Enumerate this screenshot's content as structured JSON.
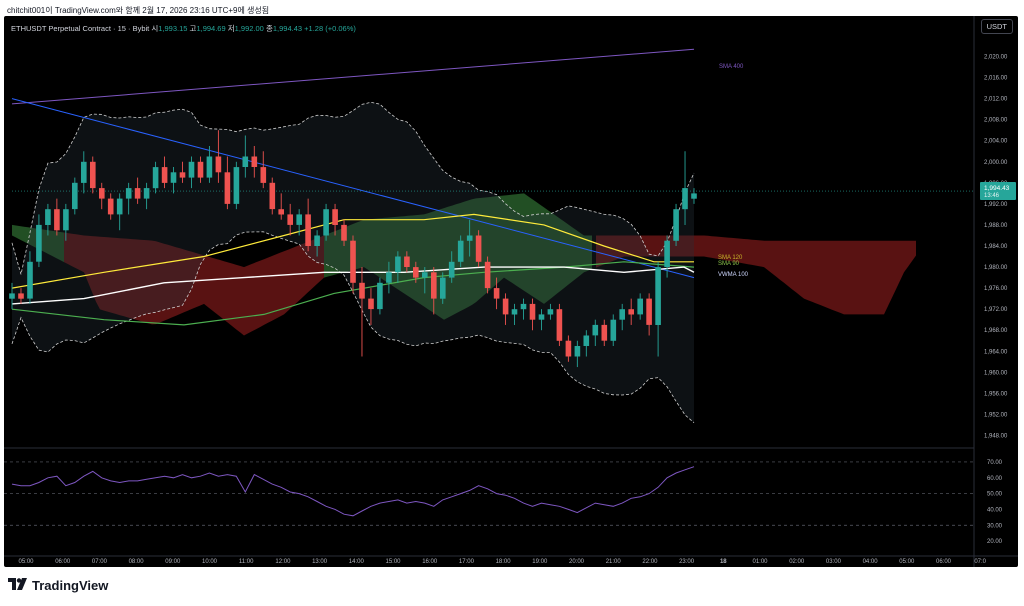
{
  "caption": "chitchit001이 TradingView.com와 함께 2월 17, 2026 23:16 UTC+9에 생성됨",
  "header": {
    "symbol": "ETHUSDT Perpetual Contract · 15 · Bybit",
    "open_label": "시",
    "open": "1,993.15",
    "high_label": "고",
    "high": "1,994.69",
    "low_label": "저",
    "low": "1,992.00",
    "close_label": "종",
    "close": "1,994.43",
    "change": "+1.28 (+0.06%)"
  },
  "currency_button": "USDT",
  "price_tag": {
    "price": "1,994.43",
    "countdown": "13:46"
  },
  "indicator_labels": {
    "sma400": "SMA 400",
    "sma120": "SMA 120",
    "sma90": "SMA 90",
    "vwma100": "VWMA 100"
  },
  "brand": "TradingView",
  "colors": {
    "up": "#26a69a",
    "down": "#ef5350",
    "sma400": "#7e57c2",
    "sma120": "#ffeb3b",
    "sma90": "#4caf50",
    "vwma": "#ffffff",
    "trend": "#2962ff",
    "rsi": "#7e57c2"
  },
  "chart_data": [
    {
      "type": "candlestick",
      "ylim": [
        1946,
        2022
      ],
      "y_ticks": [
        "2,020.00",
        "2,016.00",
        "2,012.00",
        "2,008.00",
        "2,004.00",
        "2,000.00",
        "1,996.00",
        "1,992.00",
        "1,988.00",
        "1,984.00",
        "1,980.00",
        "1,976.00",
        "1,972.00",
        "1,968.00",
        "1,964.00",
        "1,960.00",
        "1,956.00",
        "1,952.00",
        "1,948.00"
      ],
      "x_ticks": [
        "05:00",
        "06:00",
        "07:00",
        "08:00",
        "09:00",
        "10:00",
        "11:00",
        "12:00",
        "13:00",
        "14:00",
        "15:00",
        "16:00",
        "17:00",
        "18:00",
        "19:00",
        "20:00",
        "21:00",
        "22:00",
        "23:00",
        "18",
        "01:00",
        "02:00",
        "03:00",
        "04:00",
        "05:00",
        "06:00",
        "07:0"
      ],
      "candles": [
        [
          1974,
          1977,
          1972,
          1975
        ],
        [
          1975,
          1976,
          1973,
          1974
        ],
        [
          1974,
          1983,
          1973,
          1981
        ],
        [
          1981,
          1990,
          1980,
          1988
        ],
        [
          1988,
          1992,
          1986,
          1991
        ],
        [
          1991,
          1993,
          1986,
          1987
        ],
        [
          1987,
          1992,
          1985,
          1991
        ],
        [
          1991,
          1997,
          1990,
          1996
        ],
        [
          1996,
          2002,
          1994,
          2000
        ],
        [
          2000,
          2001,
          1994,
          1995
        ],
        [
          1995,
          1996,
          1991,
          1993
        ],
        [
          1993,
          1994,
          1989,
          1990
        ],
        [
          1990,
          1994,
          1987,
          1993
        ],
        [
          1993,
          1996,
          1990,
          1995
        ],
        [
          1995,
          1997,
          1992,
          1993
        ],
        [
          1993,
          1996,
          1991,
          1995
        ],
        [
          1995,
          2000,
          1994,
          1999
        ],
        [
          1999,
          2001,
          1995,
          1996
        ],
        [
          1996,
          1999,
          1994,
          1998
        ],
        [
          1998,
          2000,
          1996,
          1997
        ],
        [
          1997,
          2001,
          1995,
          2000
        ],
        [
          2000,
          2001,
          1996,
          1997
        ],
        [
          1997,
          2003,
          1996,
          2001
        ],
        [
          2001,
          2006,
          1996,
          1998
        ],
        [
          1998,
          2001,
          1991,
          1992
        ],
        [
          1992,
          2000,
          1991,
          1999
        ],
        [
          1999,
          2005,
          1997,
          2001
        ],
        [
          2001,
          2003,
          1997,
          1999
        ],
        [
          1999,
          2002,
          1995,
          1996
        ],
        [
          1996,
          1997,
          1990,
          1991
        ],
        [
          1991,
          1994,
          1989,
          1990
        ],
        [
          1990,
          1992,
          1986,
          1988
        ],
        [
          1988,
          1991,
          1986,
          1990
        ],
        [
          1990,
          1993,
          1983,
          1984
        ],
        [
          1984,
          1987,
          1982,
          1986
        ],
        [
          1986,
          1992,
          1985,
          1991
        ],
        [
          1991,
          1992,
          1986,
          1988
        ],
        [
          1988,
          1989,
          1984,
          1985
        ],
        [
          1985,
          1986,
          1975,
          1977
        ],
        [
          1977,
          1980,
          1963,
          1974
        ],
        [
          1974,
          1976,
          1969,
          1972
        ],
        [
          1972,
          1978,
          1971,
          1977
        ],
        [
          1977,
          1981,
          1975,
          1979
        ],
        [
          1979,
          1983,
          1977,
          1982
        ],
        [
          1982,
          1983,
          1979,
          1980
        ],
        [
          1980,
          1981,
          1977,
          1978
        ],
        [
          1978,
          1980,
          1975,
          1979
        ],
        [
          1979,
          1980,
          1971,
          1974
        ],
        [
          1974,
          1979,
          1973,
          1978
        ],
        [
          1978,
          1983,
          1977,
          1981
        ],
        [
          1981,
          1986,
          1980,
          1985
        ],
        [
          1985,
          1989,
          1982,
          1986
        ],
        [
          1986,
          1987,
          1980,
          1981
        ],
        [
          1981,
          1982,
          1975,
          1976
        ],
        [
          1976,
          1978,
          1972,
          1974
        ],
        [
          1974,
          1975,
          1969,
          1971
        ],
        [
          1971,
          1973,
          1969,
          1972
        ],
        [
          1972,
          1974,
          1970,
          1973
        ],
        [
          1973,
          1974,
          1968,
          1970
        ],
        [
          1970,
          1972,
          1968,
          1971
        ],
        [
          1971,
          1973,
          1970,
          1972
        ],
        [
          1972,
          1973,
          1965,
          1966
        ],
        [
          1966,
          1967,
          1962,
          1963
        ],
        [
          1963,
          1966,
          1961,
          1965
        ],
        [
          1965,
          1968,
          1963,
          1967
        ],
        [
          1967,
          1970,
          1965,
          1969
        ],
        [
          1969,
          1970,
          1965,
          1966
        ],
        [
          1966,
          1971,
          1965,
          1970
        ],
        [
          1970,
          1973,
          1968,
          1972
        ],
        [
          1972,
          1974,
          1969,
          1971
        ],
        [
          1971,
          1975,
          1970,
          1974
        ],
        [
          1974,
          1975,
          1967,
          1969
        ],
        [
          1969,
          1981,
          1963,
          1980
        ],
        [
          1980,
          1986,
          1978,
          1985
        ],
        [
          1985,
          1992,
          1984,
          1991
        ],
        [
          1991,
          2002,
          1988,
          1995
        ],
        [
          1993,
          1995,
          1992,
          1994
        ]
      ],
      "sma400": [
        2011,
        2021
      ],
      "ichimoku_cloud_right": [
        1984,
        1971
      ],
      "current_price": 1994.43
    },
    {
      "type": "line",
      "name": "RSI",
      "ylim": [
        15,
        75
      ],
      "y_ticks": [
        "70.00",
        "60.00",
        "50.00",
        "40.00",
        "30.00",
        "20.00"
      ],
      "levels": [
        70,
        50,
        30
      ],
      "values": [
        56,
        55,
        55,
        57,
        60,
        61,
        55,
        57,
        61,
        64,
        60,
        58,
        57,
        58,
        58,
        59,
        60,
        61,
        60,
        62,
        60,
        61,
        63,
        61,
        62,
        61,
        51,
        62,
        59,
        56,
        54,
        51,
        50,
        48,
        45,
        42,
        40,
        37,
        36,
        39,
        42,
        44,
        45,
        46,
        44,
        45,
        44,
        42,
        46,
        48,
        50,
        52,
        55,
        53,
        50,
        49,
        47,
        44,
        42,
        44,
        43,
        42,
        40,
        38,
        41,
        44,
        43,
        42,
        44,
        47,
        48,
        50,
        54,
        60,
        63,
        65,
        67
      ]
    }
  ]
}
